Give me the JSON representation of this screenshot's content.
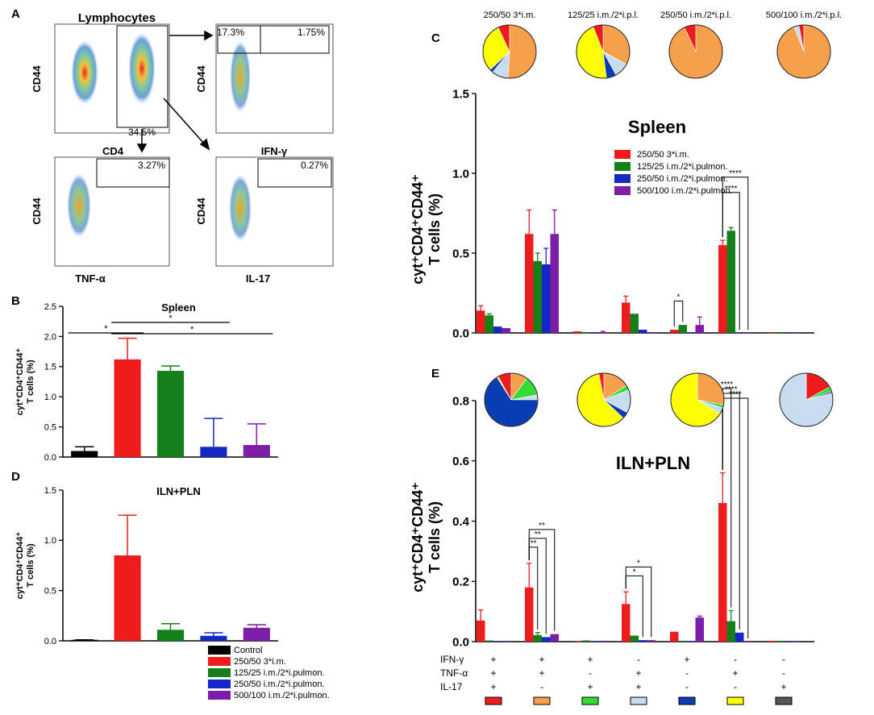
{
  "panel_labels": {
    "A": "A",
    "B": "B",
    "C": "C",
    "D": "D",
    "E": "E"
  },
  "flow": {
    "lymph_title": "Lymphocytes",
    "cd44": "CD44",
    "cd4": "CD4",
    "tnf": "TNF-α",
    "ifn": "IFN-γ",
    "il17": "IL-17",
    "pct_cd4": "34.5%",
    "pct_ifn_left": "17.3%",
    "pct_ifn_right": "1.75%",
    "pct_tnf": "3.27%",
    "pct_il17": "0.27%"
  },
  "colors": {
    "control": "#000000",
    "g1": "#ee1c1c",
    "g2": "#14801a",
    "g3": "#1428c8",
    "g4": "#7d1ea8",
    "pie_orange": "#f7a04b",
    "pie_yellow": "#ffff00",
    "pie_lightblue": "#c8dcf0",
    "pie_lightgreen": "#33dd33",
    "pie_navy": "#0a3cb4",
    "pie_red": "#ee1c1c",
    "pie_gray": "#555555"
  },
  "legend_bd": {
    "items": [
      "Control",
      "250/50 3*i.m.",
      "125/25 i.m./2*i.pulmon.",
      "250/50 i.m./2*i.pulmon.",
      "500/100 i.m./2*i.pulmon."
    ]
  },
  "legend_c": {
    "items": [
      "250/50 3*i.m.",
      "125/25 i.m./2*i.pulmon.",
      "250/50 i.m./2*i.pulmon.",
      "500/100 i.m./2*i.pulmon."
    ]
  },
  "pie_labels_c": [
    "250/50 3*i.m.",
    "125/25 i.m./2*i.p.l.",
    "250/50 i.m./2*i.p.l.",
    "500/100 i.m./2*i.p.l."
  ],
  "combo": {
    "rows": [
      "IFN-γ",
      "TNF-α",
      "IL-17"
    ],
    "signs": [
      [
        "+",
        "+",
        "+"
      ],
      [
        "+",
        "+",
        "-"
      ],
      [
        "+",
        "-",
        "+"
      ],
      [
        "-",
        "+",
        "+"
      ],
      [
        "+",
        "-",
        "-"
      ],
      [
        "-",
        "+",
        "-"
      ],
      [
        "-",
        "-",
        "+"
      ]
    ],
    "swatch_colors": [
      "#ee1c1c",
      "#f7a04b",
      "#33dd33",
      "#c8dcf0",
      "#0a3cb4",
      "#ffff00",
      "#555555"
    ]
  },
  "sig": {
    "one": "*",
    "two": "**",
    "four": "****"
  },
  "chart_data": [
    {
      "id": "B",
      "type": "bar",
      "title": "Spleen",
      "ylabel_line1": "cyt⁺CD4⁺CD44⁺",
      "ylabel_line2": "T cells (%)",
      "ylim": [
        0,
        2.5
      ],
      "yticks": [
        "0.0",
        "0.5",
        "1.0",
        "1.5",
        "2.0",
        "2.5"
      ],
      "categories": [
        "Control",
        "250/50 3*i.m.",
        "125/25 i.m./2*i.pulmon.",
        "250/50 i.m./2*i.pulmon.",
        "500/100 i.m./2*i.pulmon."
      ],
      "values": [
        0.1,
        1.62,
        1.43,
        0.17,
        0.2
      ],
      "errors": [
        0.07,
        0.35,
        0.08,
        0.47,
        0.35
      ],
      "significance": [
        {
          "from": 0,
          "to": 1,
          "label": "*"
        },
        {
          "from": 1,
          "to": 3,
          "label": "*"
        },
        {
          "from": 1,
          "to": 4,
          "label": "*"
        }
      ]
    },
    {
      "id": "D",
      "type": "bar",
      "title": "ILN+PLN",
      "ylabel_line1": "cyt⁺CD4⁺CD44⁺",
      "ylabel_line2": "T cells (%)",
      "ylim": [
        0,
        1.5
      ],
      "yticks": [
        "0.0",
        "0.5",
        "1.0",
        "1.5"
      ],
      "categories": [
        "Control",
        "250/50 3*i.m.",
        "125/25 i.m./2*i.pulmon.",
        "250/50 i.m./2*i.pulmon.",
        "500/100 i.m./2*i.pulmon."
      ],
      "values": [
        0.01,
        0.85,
        0.11,
        0.05,
        0.13
      ],
      "errors": [
        0.0,
        0.4,
        0.06,
        0.03,
        0.03
      ]
    },
    {
      "id": "C",
      "type": "bar",
      "title": "Spleen",
      "ylabel_line1": "cyt⁺CD4⁺CD44⁺",
      "ylabel_line2": "T cells (%)",
      "ylim": [
        0,
        1.5
      ],
      "yticks": [
        "0.0",
        "0.5",
        "1.0",
        "1.5"
      ],
      "series": [
        {
          "name": "250/50 3*i.m.",
          "values": [
            0.14,
            0.62,
            0.01,
            0.19,
            0.02,
            0.55,
            0.0
          ],
          "errors": [
            0.03,
            0.15,
            0.0,
            0.04,
            0.0,
            0.03,
            0.0
          ]
        },
        {
          "name": "125/25 i.m./2*i.pulmon.",
          "values": [
            0.11,
            0.45,
            0.0,
            0.12,
            0.05,
            0.64,
            0.0
          ],
          "errors": [
            0.01,
            0.05,
            0.0,
            0.0,
            0.0,
            0.02,
            0.0
          ]
        },
        {
          "name": "250/50 i.m./2*i.pulmon.",
          "values": [
            0.04,
            0.43,
            0.0,
            0.02,
            0.0,
            0.0,
            0.0
          ],
          "errors": [
            0.0,
            0.1,
            0.0,
            0.0,
            0.0,
            0.0,
            0.0
          ]
        },
        {
          "name": "500/100 i.m./2*i.pulmon.",
          "values": [
            0.03,
            0.62,
            0.0,
            0.0,
            0.05,
            0.0,
            0.0
          ],
          "errors": [
            0.0,
            0.15,
            0.01,
            0.0,
            0.05,
            0.0,
            0.0
          ]
        }
      ],
      "pies": [
        [
          {
            "c": "pie_orange",
            "v": 51
          },
          {
            "c": "pie_lightblue",
            "v": 10
          },
          {
            "c": "pie_navy",
            "v": 2
          },
          {
            "c": "pie_yellow",
            "v": 30
          },
          {
            "c": "pie_red",
            "v": 7
          }
        ],
        [
          {
            "c": "pie_orange",
            "v": 33
          },
          {
            "c": "pie_lightblue",
            "v": 9
          },
          {
            "c": "pie_navy",
            "v": 6
          },
          {
            "c": "pie_yellow",
            "v": 46
          },
          {
            "c": "pie_red",
            "v": 6
          }
        ],
        [
          {
            "c": "pie_orange",
            "v": 93
          },
          {
            "c": "pie_red",
            "v": 7
          }
        ],
        [
          {
            "c": "pie_orange",
            "v": 94
          },
          {
            "c": "pie_lightblue",
            "v": 3
          },
          {
            "c": "pie_red",
            "v": 3
          }
        ]
      ],
      "significance": [
        {
          "group": 4,
          "from": 0,
          "to": 1,
          "label": "*"
        },
        {
          "group": 5,
          "from": 0,
          "to": 2,
          "label": "****"
        },
        {
          "group": 5,
          "from": 0,
          "to": 3,
          "label": "****"
        }
      ]
    },
    {
      "id": "E",
      "type": "bar",
      "title": "ILN+PLN",
      "ylabel_line1": "cyt⁺CD4⁺CD44⁺",
      "ylabel_line2": "T cells (%)",
      "ylim": [
        0,
        0.8
      ],
      "yticks": [
        "0.0",
        "0.2",
        "0.4",
        "0.6",
        "0.8"
      ],
      "series": [
        {
          "name": "250/50 3*i.m.",
          "values": [
            0.07,
            0.18,
            0.0,
            0.125,
            0.033,
            0.46,
            0.003
          ],
          "errors": [
            0.035,
            0.08,
            0.0,
            0.04,
            0.0,
            0.1,
            0.0
          ]
        },
        {
          "name": "125/25 i.m./2*i.pulmon.",
          "values": [
            0.004,
            0.022,
            0.004,
            0.02,
            0.003,
            0.068,
            0.003
          ],
          "errors": [
            0.0,
            0.008,
            0.0,
            0.0,
            0.0,
            0.035,
            0.0
          ]
        },
        {
          "name": "250/50 i.m./2*i.pulmon.",
          "values": [
            0.0,
            0.015,
            0.0,
            0.005,
            0.0,
            0.03,
            0.0
          ],
          "errors": [
            0.0,
            0.0,
            0.0,
            0.0,
            0.0,
            0.0,
            0.0
          ]
        },
        {
          "name": "500/100 i.m./2*i.pulmon.",
          "values": [
            0.0,
            0.025,
            0.003,
            0.005,
            0.08,
            0.0,
            0.0
          ],
          "errors": [
            0.0,
            0.0,
            0.0,
            0.0,
            0.005,
            0.0,
            0.0
          ]
        }
      ],
      "pies": [
        [
          {
            "c": "pie_orange",
            "v": 10
          },
          {
            "c": "pie_lightgreen",
            "v": 12
          },
          {
            "c": "pie_lightblue",
            "v": 3
          },
          {
            "c": "pie_navy",
            "v": 66
          },
          {
            "c": "pie_yellow",
            "v": 1
          },
          {
            "c": "pie_red",
            "v": 8
          }
        ],
        [
          {
            "c": "pie_orange",
            "v": 16
          },
          {
            "c": "pie_lightgreen",
            "v": 3
          },
          {
            "c": "pie_lightblue",
            "v": 14
          },
          {
            "c": "pie_navy",
            "v": 4
          },
          {
            "c": "pie_yellow",
            "v": 60
          },
          {
            "c": "pie_red",
            "v": 3
          }
        ],
        [
          {
            "c": "pie_orange",
            "v": 28
          },
          {
            "c": "pie_lightgreen",
            "v": 2
          },
          {
            "c": "pie_lightblue",
            "v": 4
          },
          {
            "c": "pie_yellow",
            "v": 66
          }
        ],
        [
          {
            "c": "pie_red",
            "v": 17
          },
          {
            "c": "pie_lightgreen",
            "v": 3
          },
          {
            "c": "pie_navy",
            "v": 1
          },
          {
            "c": "pie_lightblue",
            "v": 79
          }
        ]
      ],
      "significance": [
        {
          "group": 1,
          "from": 0,
          "to": 1,
          "label": "**"
        },
        {
          "group": 1,
          "from": 0,
          "to": 2,
          "label": "**"
        },
        {
          "group": 1,
          "from": 0,
          "to": 3,
          "label": "**"
        },
        {
          "group": 3,
          "from": 0,
          "to": 2,
          "label": "*"
        },
        {
          "group": 3,
          "from": 0,
          "to": 3,
          "label": "*"
        },
        {
          "group": 5,
          "from": 0,
          "to": 1,
          "label": "****"
        },
        {
          "group": 5,
          "from": 0,
          "to": 2,
          "label": "****"
        },
        {
          "group": 5,
          "from": 0,
          "to": 3,
          "label": "****"
        }
      ]
    }
  ]
}
